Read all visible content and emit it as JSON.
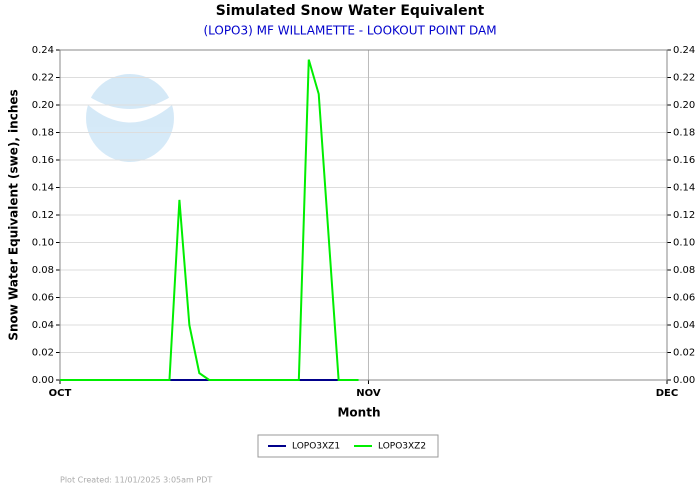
{
  "chart_data": {
    "type": "line",
    "title": "Simulated Snow Water Equivalent",
    "subtitle": "(LOPO3) MF WILLAMETTE - LOOKOUT POINT DAM",
    "y_label": "Snow Water Equivalent (swe),  inches",
    "x_label": "Month",
    "footnote": "Plot Created: 11/01/2025 3:05am PDT",
    "x": [
      0,
      11,
      12,
      13,
      14,
      15,
      24,
      25,
      26,
      28,
      30
    ],
    "series": [
      {
        "name": "LOPO3XZ1",
        "color": "#00008b",
        "values": [
          0,
          0,
          0,
          0,
          0,
          0,
          0,
          0,
          0,
          0,
          0
        ]
      },
      {
        "name": "LOPO3XZ2",
        "color": "#00ee00",
        "values": [
          0,
          0,
          0.131,
          0.04,
          0.005,
          0,
          0,
          0.233,
          0.208,
          0,
          0
        ]
      }
    ],
    "xlim": [
      0,
      61
    ],
    "xticks": [
      {
        "value": 0,
        "label": "OCT"
      },
      {
        "value": 31,
        "label": "NOV"
      },
      {
        "value": 61,
        "label": "DEC"
      }
    ],
    "ylim": [
      0,
      0.24
    ],
    "yticks": [
      {
        "value": 0,
        "label": "0.00"
      },
      {
        "value": 0.02,
        "label": "0.02"
      },
      {
        "value": 0.04,
        "label": "0.04"
      },
      {
        "value": 0.06,
        "label": "0.06"
      },
      {
        "value": 0.08,
        "label": "0.08"
      },
      {
        "value": 0.1,
        "label": "0.10"
      },
      {
        "value": 0.12,
        "label": "0.12"
      },
      {
        "value": 0.14,
        "label": "0.14"
      },
      {
        "value": 0.16,
        "label": "0.16"
      },
      {
        "value": 0.18,
        "label": "0.18"
      },
      {
        "value": 0.2,
        "label": "0.20"
      },
      {
        "value": 0.22,
        "label": "0.22"
      },
      {
        "value": 0.24,
        "label": "0.24"
      }
    ],
    "grid": true,
    "legend": "bottom"
  }
}
